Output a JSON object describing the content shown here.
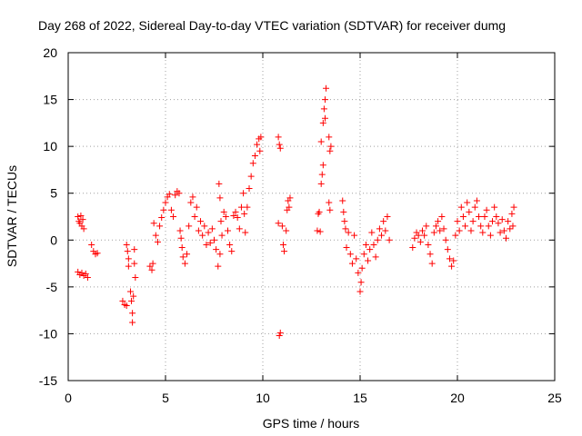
{
  "chart_data": {
    "type": "scatter",
    "title": "Day 268 of 2022, Sidereal Day-to-day VTEC variation (SDTVAR) for receiver dumg",
    "xlabel": "GPS time / hours",
    "ylabel": "SDTVAR / TECUs",
    "xlim": [
      0,
      25
    ],
    "ylim": [
      -15,
      20
    ],
    "xticks": [
      0,
      5,
      10,
      15,
      20,
      25
    ],
    "yticks": [
      -15,
      -10,
      -5,
      0,
      5,
      10,
      15,
      20
    ],
    "grid": true,
    "marker": "+",
    "colors": {
      "points": "#ff0000",
      "grid": "#a0a0a0",
      "axis": "#000000"
    },
    "series": [
      {
        "name": "SDTVAR",
        "points": [
          [
            0.5,
            2.5
          ],
          [
            0.55,
            2.0
          ],
          [
            0.6,
            1.8
          ],
          [
            0.65,
            2.6
          ],
          [
            0.7,
            1.5
          ],
          [
            0.75,
            2.2
          ],
          [
            0.8,
            1.2
          ],
          [
            0.5,
            -3.4
          ],
          [
            0.6,
            -3.7
          ],
          [
            0.7,
            -3.5
          ],
          [
            0.8,
            -3.8
          ],
          [
            0.9,
            -3.6
          ],
          [
            1.0,
            -4.0
          ],
          [
            1.2,
            -0.5
          ],
          [
            1.3,
            -1.2
          ],
          [
            1.4,
            -1.5
          ],
          [
            1.5,
            -1.4
          ],
          [
            2.8,
            -6.5
          ],
          [
            2.9,
            -6.9
          ],
          [
            3.0,
            -7.0
          ],
          [
            3.0,
            -0.5
          ],
          [
            3.05,
            -1.2
          ],
          [
            3.1,
            -2.0
          ],
          [
            3.1,
            -2.8
          ],
          [
            3.2,
            -5.5
          ],
          [
            3.25,
            -6.5
          ],
          [
            3.3,
            -7.8
          ],
          [
            3.3,
            -8.8
          ],
          [
            3.35,
            -6.0
          ],
          [
            3.4,
            -1.0
          ],
          [
            3.4,
            -2.5
          ],
          [
            3.45,
            -4.0
          ],
          [
            4.2,
            -2.8
          ],
          [
            4.3,
            -3.2
          ],
          [
            4.35,
            -2.5
          ],
          [
            4.4,
            1.8
          ],
          [
            4.5,
            0.5
          ],
          [
            4.6,
            -0.2
          ],
          [
            4.7,
            1.5
          ],
          [
            4.8,
            2.4
          ],
          [
            4.9,
            3.2
          ],
          [
            5.0,
            4.0
          ],
          [
            5.1,
            4.6
          ],
          [
            5.2,
            4.9
          ],
          [
            5.3,
            3.2
          ],
          [
            5.4,
            2.5
          ],
          [
            5.5,
            4.8
          ],
          [
            5.6,
            5.2
          ],
          [
            5.7,
            5.0
          ],
          [
            5.75,
            1.0
          ],
          [
            5.8,
            0.2
          ],
          [
            5.85,
            -0.8
          ],
          [
            5.9,
            -1.8
          ],
          [
            6.0,
            -2.5
          ],
          [
            6.1,
            -1.5
          ],
          [
            6.2,
            1.5
          ],
          [
            6.3,
            4.0
          ],
          [
            6.4,
            4.6
          ],
          [
            6.5,
            2.5
          ],
          [
            6.6,
            3.5
          ],
          [
            6.7,
            1.0
          ],
          [
            6.8,
            2.0
          ],
          [
            6.9,
            0.5
          ],
          [
            7.0,
            1.5
          ],
          [
            7.1,
            -0.5
          ],
          [
            7.2,
            0.8
          ],
          [
            7.3,
            -0.3
          ],
          [
            7.4,
            1.2
          ],
          [
            7.5,
            0.0
          ],
          [
            7.6,
            -1.0
          ],
          [
            7.7,
            -2.8
          ],
          [
            7.8,
            -1.5
          ],
          [
            7.75,
            6.0
          ],
          [
            7.8,
            4.5
          ],
          [
            7.85,
            2.0
          ],
          [
            7.9,
            0.5
          ],
          [
            8.0,
            3.0
          ],
          [
            8.1,
            2.5
          ],
          [
            8.2,
            1.0
          ],
          [
            8.3,
            -0.5
          ],
          [
            8.4,
            -1.2
          ],
          [
            8.5,
            2.6
          ],
          [
            8.6,
            3.0
          ],
          [
            8.7,
            2.4
          ],
          [
            8.8,
            1.2
          ],
          [
            8.9,
            3.5
          ],
          [
            9.0,
            5.0
          ],
          [
            9.05,
            2.8
          ],
          [
            9.1,
            0.8
          ],
          [
            9.2,
            3.5
          ],
          [
            9.3,
            5.5
          ],
          [
            9.4,
            6.8
          ],
          [
            9.5,
            8.2
          ],
          [
            9.6,
            9.0
          ],
          [
            9.7,
            10.2
          ],
          [
            9.8,
            10.8
          ],
          [
            9.85,
            9.5
          ],
          [
            9.9,
            11.0
          ],
          [
            10.8,
            11.0
          ],
          [
            10.85,
            10.2
          ],
          [
            10.9,
            9.8
          ],
          [
            10.8,
            1.8
          ],
          [
            10.85,
            -10.2
          ],
          [
            10.9,
            -9.9
          ],
          [
            11.0,
            1.5
          ],
          [
            11.05,
            -0.5
          ],
          [
            11.1,
            -1.2
          ],
          [
            11.2,
            1.0
          ],
          [
            11.25,
            3.2
          ],
          [
            11.3,
            4.2
          ],
          [
            11.35,
            3.5
          ],
          [
            11.4,
            4.5
          ],
          [
            12.8,
            1.0
          ],
          [
            12.85,
            2.8
          ],
          [
            12.9,
            3.0
          ],
          [
            12.95,
            0.9
          ],
          [
            13.0,
            6.0
          ],
          [
            13.05,
            7.0
          ],
          [
            13.1,
            8.0
          ],
          [
            13.0,
            10.5
          ],
          [
            13.1,
            12.5
          ],
          [
            13.15,
            14.0
          ],
          [
            13.2,
            13.0
          ],
          [
            13.2,
            15.0
          ],
          [
            13.25,
            16.2
          ],
          [
            13.4,
            11.0
          ],
          [
            13.45,
            9.5
          ],
          [
            13.5,
            10.0
          ],
          [
            13.4,
            4.0
          ],
          [
            13.45,
            3.2
          ],
          [
            14.1,
            4.2
          ],
          [
            14.15,
            3.0
          ],
          [
            14.2,
            2.0
          ],
          [
            14.25,
            1.2
          ],
          [
            14.3,
            -0.8
          ],
          [
            14.4,
            0.8
          ],
          [
            14.5,
            -1.5
          ],
          [
            14.6,
            -2.5
          ],
          [
            14.7,
            0.5
          ],
          [
            14.8,
            -2.0
          ],
          [
            14.9,
            -3.5
          ],
          [
            15.0,
            -5.5
          ],
          [
            15.05,
            -4.5
          ],
          [
            15.1,
            -3.0
          ],
          [
            15.2,
            -1.5
          ],
          [
            15.3,
            -0.5
          ],
          [
            15.4,
            -2.2
          ],
          [
            15.5,
            -1.0
          ],
          [
            15.6,
            0.8
          ],
          [
            15.7,
            -0.5
          ],
          [
            15.8,
            -1.8
          ],
          [
            15.9,
            0.0
          ],
          [
            16.0,
            1.2
          ],
          [
            16.1,
            0.5
          ],
          [
            16.2,
            2.0
          ],
          [
            16.3,
            1.0
          ],
          [
            16.4,
            2.5
          ],
          [
            16.5,
            0.0
          ],
          [
            17.7,
            -0.8
          ],
          [
            17.8,
            0.2
          ],
          [
            17.9,
            0.8
          ],
          [
            18.0,
            0.5
          ],
          [
            18.1,
            -0.2
          ],
          [
            18.2,
            1.0
          ],
          [
            18.3,
            0.5
          ],
          [
            18.4,
            1.5
          ],
          [
            18.5,
            -0.5
          ],
          [
            18.6,
            -1.5
          ],
          [
            18.7,
            -2.5
          ],
          [
            18.8,
            0.8
          ],
          [
            18.9,
            1.5
          ],
          [
            19.0,
            2.0
          ],
          [
            19.1,
            1.0
          ],
          [
            19.2,
            2.5
          ],
          [
            19.3,
            1.2
          ],
          [
            19.4,
            0.0
          ],
          [
            19.5,
            -1.0
          ],
          [
            19.6,
            -2.0
          ],
          [
            19.7,
            -2.8
          ],
          [
            19.8,
            -2.2
          ],
          [
            19.9,
            0.5
          ],
          [
            20.0,
            2.0
          ],
          [
            20.1,
            1.0
          ],
          [
            20.2,
            3.5
          ],
          [
            20.3,
            2.5
          ],
          [
            20.4,
            1.5
          ],
          [
            20.5,
            4.0
          ],
          [
            20.6,
            3.0
          ],
          [
            20.7,
            1.0
          ],
          [
            20.8,
            2.0
          ],
          [
            20.9,
            3.5
          ],
          [
            21.0,
            4.2
          ],
          [
            21.1,
            2.5
          ],
          [
            21.2,
            1.5
          ],
          [
            21.3,
            0.8
          ],
          [
            21.4,
            2.5
          ],
          [
            21.5,
            3.2
          ],
          [
            21.6,
            1.5
          ],
          [
            21.7,
            0.5
          ],
          [
            21.8,
            2.0
          ],
          [
            21.9,
            3.5
          ],
          [
            22.0,
            2.5
          ],
          [
            22.1,
            1.8
          ],
          [
            22.2,
            0.8
          ],
          [
            22.3,
            2.2
          ],
          [
            22.4,
            1.0
          ],
          [
            22.5,
            0.2
          ],
          [
            22.6,
            2.0
          ],
          [
            22.7,
            1.2
          ],
          [
            22.8,
            2.8
          ],
          [
            22.85,
            1.5
          ],
          [
            22.9,
            3.5
          ]
        ]
      }
    ]
  }
}
